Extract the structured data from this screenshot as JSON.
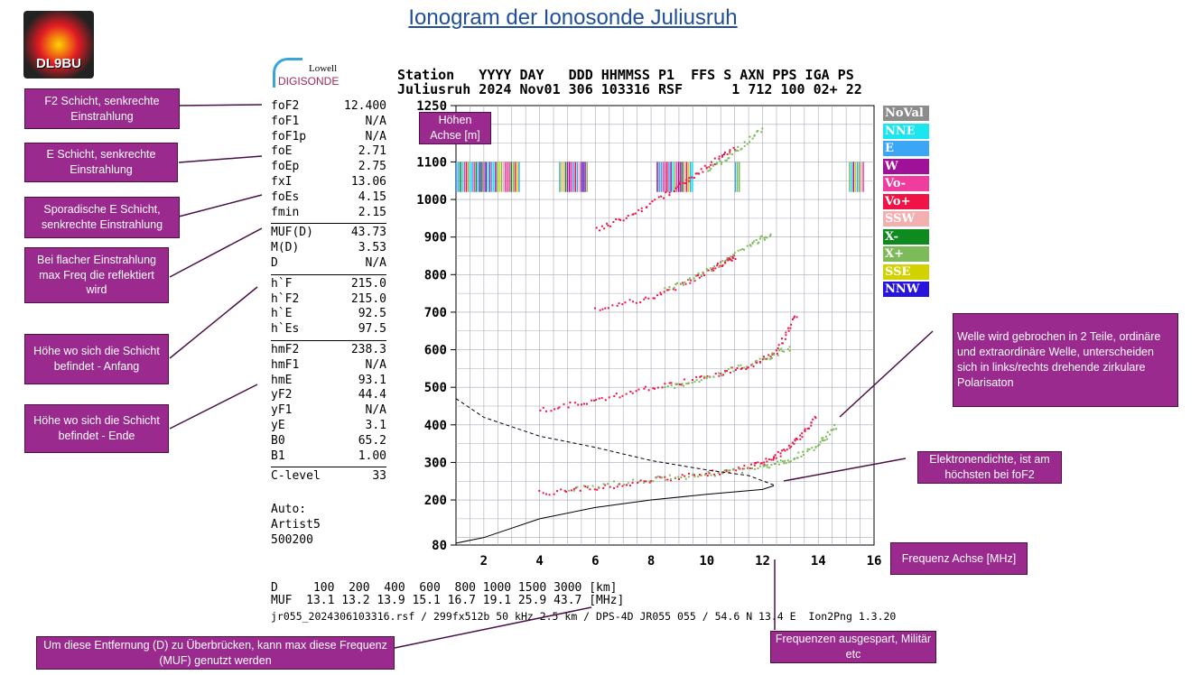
{
  "title": "Ionogram der Ionosonde Juliusruh",
  "logo_text": "DL9BU",
  "digisonde_logo": {
    "line1": "Lowell",
    "line2": "DIGISONDE"
  },
  "header": {
    "row1": "Station   YYYY DAY   DDD HHMMSS P1  FFS S AXN PPS IGA PS",
    "row2": "Juliusruh 2024 Nov01 306 103316 RSF      1 712 100 02+ 22"
  },
  "params": [
    [
      [
        "foF2",
        "12.400"
      ],
      [
        "foF1",
        "N/A"
      ],
      [
        "foF1p",
        "N/A"
      ],
      [
        "foE",
        "2.71"
      ],
      [
        "foEp",
        "2.75"
      ],
      [
        "fxI",
        "13.06"
      ],
      [
        "foEs",
        "4.15"
      ],
      [
        "fmin",
        "2.15"
      ]
    ],
    [
      [
        "MUF(D)",
        "43.73"
      ],
      [
        "M(D)",
        "3.53"
      ],
      [
        "D",
        "N/A"
      ]
    ],
    [
      [
        "h`F",
        "215.0"
      ],
      [
        "h`F2",
        "215.0"
      ],
      [
        "h`E",
        "92.5"
      ],
      [
        "h`Es",
        "97.5"
      ]
    ],
    [
      [
        "hmF2",
        "238.3"
      ],
      [
        "hmF1",
        "N/A"
      ],
      [
        "hmE",
        "93.1"
      ],
      [
        "yF2",
        "44.4"
      ],
      [
        "yF1",
        "N/A"
      ],
      [
        "yE",
        "3.1"
      ],
      [
        "B0",
        "65.2"
      ],
      [
        "B1",
        "1.00"
      ]
    ],
    [
      [
        "C-level",
        "33"
      ]
    ]
  ],
  "auto": [
    "Auto:",
    "Artist5",
    "500200"
  ],
  "distance_row": "D     100  200  400  600  800 1000 1500 3000 [km]",
  "muf_row": "MUF  13.1 13.2 13.9 15.1 16.7 19.1 25.9 43.7 [MHz]",
  "footer": "jr055_2024306103316.rsf / 299fx512b 50 kHz 2.5 km / DPS-4D JR055 055 / 54.6 N 13.4 E  Ion2Png 1.3.20",
  "legend": [
    {
      "label": "NoVal",
      "color": "#8c8c8c"
    },
    {
      "label": "NNE",
      "color": "#19e6f0"
    },
    {
      "label": "E",
      "color": "#3aa6f5"
    },
    {
      "label": "W",
      "color": "#a0119a"
    },
    {
      "label": "Vo-",
      "color": "#f03c9e"
    },
    {
      "label": "Vo+",
      "color": "#f01446"
    },
    {
      "label": "SSW",
      "color": "#f4b0b0"
    },
    {
      "label": "X-",
      "color": "#0f8a1e"
    },
    {
      "label": "X+",
      "color": "#7dbb5a"
    },
    {
      "label": "SSE",
      "color": "#d2d200"
    },
    {
      "label": "NNW",
      "color": "#2814dc"
    }
  ],
  "notes": [
    "F2 Schicht, senkrechte Einstrahlung",
    "E Schicht, senkrechte Einstrahlung",
    "Sporadische E Schicht, senkrechte Einstrahlung",
    "Bei flacher Einstrahlung max Freq die reflektiert wird",
    "Höhe wo sich die Schicht befindet - Anfang",
    "Höhe wo sich die Schicht befindet - Ende",
    "Höhen Achse [m]",
    "Welle wird gebrochen in 2 Teile, ordinäre und extraordinäre Welle, unterscheiden sich in links/rechts drehende zirkulare Polarisaton",
    "Elektronendichte, ist am höchsten bei foF2",
    "Frequenz Achse [MHz]",
    "Frequenzen ausgespart, Militär etc",
    "Um diese Entfernung  (D) zu Überbrücken, kann max diese Frequenz (MUF) genutzt werden"
  ],
  "chart_data": {
    "type": "scatter",
    "xlabel": "",
    "ylabel": "",
    "xlim": [
      1,
      16
    ],
    "ylim": [
      80,
      1250
    ],
    "x_ticks": [
      2,
      4,
      6,
      8,
      10,
      12,
      14,
      16
    ],
    "y_ticks": [
      80,
      200,
      300,
      400,
      500,
      600,
      700,
      800,
      900,
      1000,
      1100,
      1250
    ],
    "grid": true,
    "legend_placement": "right",
    "series": [
      {
        "name": "Vo+",
        "color": "#f01446",
        "points": [
          [
            4,
            220
          ],
          [
            6,
            235
          ],
          [
            8,
            255
          ],
          [
            10,
            272
          ],
          [
            11.5,
            290
          ],
          [
            12.4,
            315
          ],
          [
            13.2,
            360
          ],
          [
            13.9,
            420
          ]
        ]
      },
      {
        "name": "X+",
        "color": "#7dbb5a",
        "points": [
          [
            5,
            232
          ],
          [
            8,
            258
          ],
          [
            10,
            270
          ],
          [
            12,
            290
          ],
          [
            13,
            310
          ],
          [
            14,
            350
          ],
          [
            14.6,
            400
          ]
        ]
      },
      {
        "name": "Vo+",
        "color": "#f01446",
        "points": [
          [
            4,
            440
          ],
          [
            6,
            470
          ],
          [
            8,
            500
          ],
          [
            10,
            530
          ],
          [
            11.5,
            560
          ],
          [
            12.5,
            600
          ],
          [
            13.2,
            700
          ]
        ]
      },
      {
        "name": "X+",
        "color": "#7dbb5a",
        "points": [
          [
            8.5,
            500
          ],
          [
            10,
            530
          ],
          [
            12,
            575
          ],
          [
            13,
            610
          ]
        ]
      },
      {
        "name": "Vo+",
        "color": "#f01446",
        "points": [
          [
            6,
            710
          ],
          [
            8,
            740
          ],
          [
            9.5,
            790
          ],
          [
            10.5,
            830
          ],
          [
            11,
            850
          ]
        ]
      },
      {
        "name": "X+",
        "color": "#7dbb5a",
        "points": [
          [
            8.5,
            760
          ],
          [
            10,
            810
          ],
          [
            11.5,
            880
          ],
          [
            12.3,
            910
          ]
        ]
      },
      {
        "name": "Vo+",
        "color": "#f01446",
        "points": [
          [
            6,
            920
          ],
          [
            7.5,
            970
          ],
          [
            9,
            1040
          ],
          [
            10,
            1090
          ],
          [
            11,
            1140
          ]
        ]
      },
      {
        "name": "X+",
        "color": "#7dbb5a",
        "points": [
          [
            10,
            1080
          ],
          [
            11,
            1130
          ],
          [
            12,
            1190
          ]
        ]
      }
    ],
    "profile_curve": [
      [
        1,
        85
      ],
      [
        2,
        100
      ],
      [
        4,
        150
      ],
      [
        6,
        180
      ],
      [
        8,
        200
      ],
      [
        10,
        215
      ],
      [
        12,
        228
      ],
      [
        12.4,
        238
      ]
    ],
    "dashed_curve": [
      [
        1,
        470
      ],
      [
        2,
        420
      ],
      [
        4,
        370
      ],
      [
        6,
        340
      ],
      [
        8,
        305
      ],
      [
        10,
        280
      ],
      [
        11.5,
        265
      ],
      [
        12.4,
        240
      ]
    ]
  }
}
